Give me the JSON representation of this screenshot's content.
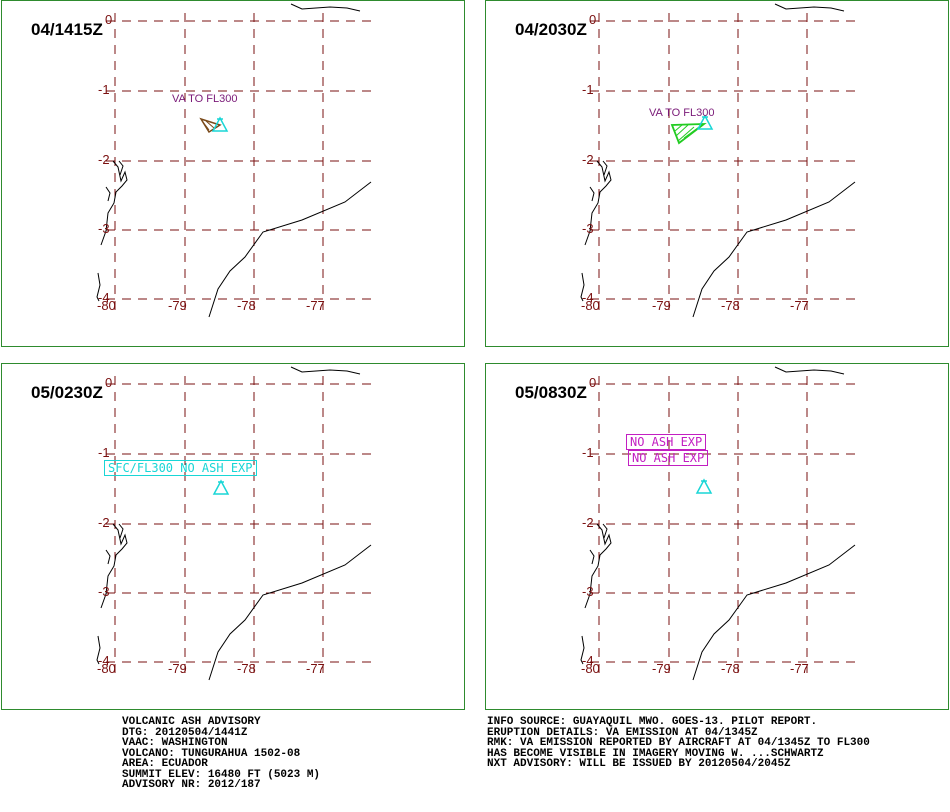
{
  "panels": [
    {
      "time": "04/1415Z"
    },
    {
      "time": "04/2030Z"
    },
    {
      "time": "05/0230Z"
    },
    {
      "time": "05/0830Z"
    }
  ],
  "grid": {
    "lat_labels": [
      "0",
      "-1",
      "-2",
      "-3",
      "-4"
    ],
    "lon_labels": [
      "-80",
      "-79",
      "-78",
      "-77"
    ]
  },
  "annotations": {
    "p1_va": "VA TO FL300",
    "p2_va": "VA TO FL300",
    "p3_box": "SFC/FL300 NO ASH EXP",
    "p4_box1": "NO ASH EXP",
    "p4_box2": "NO ASH EXP"
  },
  "colors": {
    "grid": "#7a1010",
    "coast": "#000000",
    "border": "#2e8b2e",
    "volcano": "#19d6d6",
    "ash_p1": "#7a4a1a",
    "ash_p2": "#22cc22",
    "label_va": "#7a1a78",
    "label_noash_p3": "#19d6d6",
    "label_noash_p4": "#c21fc2"
  },
  "advisory_left": {
    "line1": "VOLCANIC ASH ADVISORY",
    "line2": "DTG: 20120504/1441Z",
    "line3": "VAAC: WASHINGTON",
    "line4": "VOLCANO: TUNGURAHUA 1502-08",
    "line5": "AREA: ECUADOR",
    "line6": "SUMMIT ELEV: 16480 FT (5023 M)",
    "line7": "ADVISORY NR: 2012/187"
  },
  "advisory_right": {
    "line1": "INFO SOURCE: GUAYAQUIL MWO. GOES-13. PILOT REPORT.",
    "line2": "ERUPTION DETAILS: VA EMISSION AT 04/1345Z",
    "line3": "RMK: VA EMISSION REPORTED BY AIRCRAFT AT 04/1345Z TO FL300",
    "line4": "HAS BECOME VISIBLE IN IMAGERY MOVING W.  ...SCHWARTZ",
    "line5": "NXT ADVISORY: WILL BE ISSUED BY 20120504/2045Z"
  }
}
